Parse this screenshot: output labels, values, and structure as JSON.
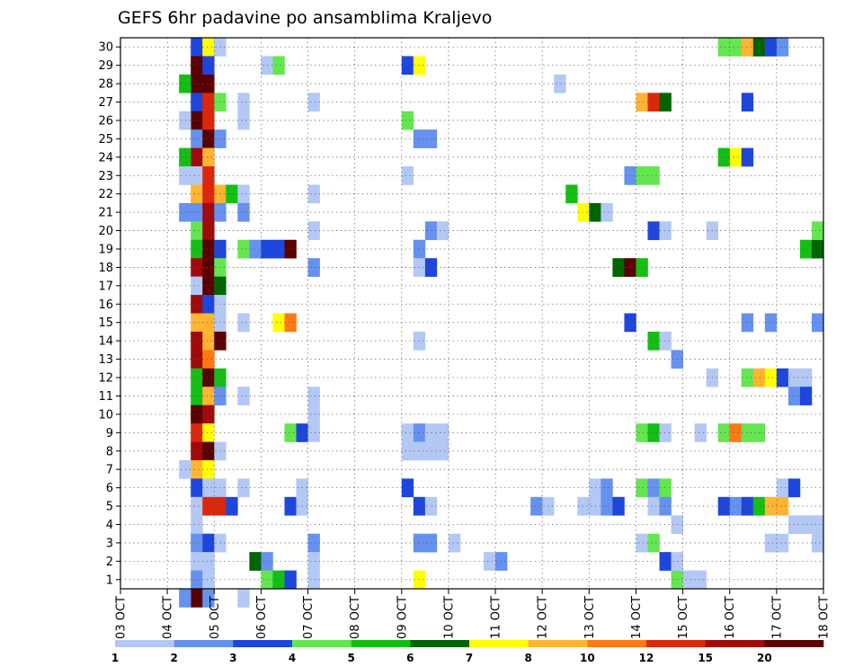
{
  "chart_data": {
    "type": "heatmap",
    "title": "GEFS 6hr padavine po ansamblima Kraljevo",
    "xlabel": "",
    "ylabel": "",
    "x_tick_labels": [
      "03 OCT",
      "04 OCT",
      "05 OCT",
      "06 OCT",
      "07 OCT",
      "08 OCT",
      "09 OCT",
      "10 OCT",
      "11 OCT",
      "12 OCT",
      "13 OCT",
      "14 OCT",
      "15 OCT",
      "16 OCT",
      "17 OCT",
      "18 OCT"
    ],
    "y_tick_labels": [
      "1",
      "2",
      "3",
      "4",
      "5",
      "6",
      "7",
      "8",
      "9",
      "10",
      "11",
      "12",
      "13",
      "14",
      "15",
      "16",
      "17",
      "18",
      "19",
      "20",
      "21",
      "22",
      "23",
      "24",
      "25",
      "26",
      "27",
      "28",
      "29",
      "30"
    ],
    "xlim": [
      0,
      60
    ],
    "ylim": [
      0.5,
      30.5
    ],
    "grid": true,
    "colorbar": {
      "labels": [
        "1",
        "2",
        "3",
        "4",
        "5",
        "6",
        "7",
        "8",
        "10",
        "12",
        "15",
        "20"
      ],
      "colors": [
        "#b4c8f5",
        "#6691ef",
        "#1e46dc",
        "#64e650",
        "#14be14",
        "#006400",
        "#ffff00",
        "#ffb432",
        "#ff7814",
        "#dc280a",
        "#a00a0a",
        "#5a0000"
      ]
    },
    "cells": [
      [
        6,
        30,
        2
      ],
      [
        6,
        29,
        11
      ],
      [
        6,
        28,
        11
      ],
      [
        6,
        27,
        2
      ],
      [
        6,
        26,
        11
      ],
      [
        6,
        25,
        1
      ],
      [
        6,
        24,
        10
      ],
      [
        6,
        23,
        0
      ],
      [
        6,
        22,
        7
      ],
      [
        6,
        21,
        1
      ],
      [
        6,
        20,
        3
      ],
      [
        6,
        19,
        4
      ],
      [
        6,
        18,
        10
      ],
      [
        6,
        17,
        0
      ],
      [
        6,
        16,
        10
      ],
      [
        6,
        15,
        7
      ],
      [
        6,
        14,
        10
      ],
      [
        6,
        13,
        10
      ],
      [
        6,
        12,
        4
      ],
      [
        6,
        11,
        4
      ],
      [
        6,
        10,
        11
      ],
      [
        6,
        9,
        9
      ],
      [
        6,
        8,
        10
      ],
      [
        6,
        7,
        7
      ],
      [
        6,
        6,
        2
      ],
      [
        6,
        5,
        0
      ],
      [
        6,
        4,
        0
      ],
      [
        6,
        3,
        1
      ],
      [
        6,
        2,
        0
      ],
      [
        6,
        1,
        1
      ],
      [
        6,
        0,
        11
      ],
      [
        5,
        28,
        4
      ],
      [
        5,
        26,
        0
      ],
      [
        5,
        24,
        4
      ],
      [
        5,
        23,
        0
      ],
      [
        5,
        21,
        1
      ],
      [
        5,
        7,
        0
      ],
      [
        5,
        0,
        1
      ],
      [
        7,
        30,
        6
      ],
      [
        7,
        29,
        2
      ],
      [
        7,
        28,
        11
      ],
      [
        7,
        27,
        9
      ],
      [
        7,
        26,
        9
      ],
      [
        7,
        25,
        11
      ],
      [
        7,
        24,
        7
      ],
      [
        7,
        23,
        9
      ],
      [
        7,
        22,
        9
      ],
      [
        7,
        21,
        10
      ],
      [
        7,
        20,
        10
      ],
      [
        7,
        19,
        11
      ],
      [
        7,
        18,
        11
      ],
      [
        7,
        17,
        11
      ],
      [
        7,
        16,
        2
      ],
      [
        7,
        15,
        7
      ],
      [
        7,
        14,
        7
      ],
      [
        7,
        13,
        8
      ],
      [
        7,
        12,
        11
      ],
      [
        7,
        11,
        7
      ],
      [
        7,
        10,
        10
      ],
      [
        7,
        9,
        6
      ],
      [
        7,
        8,
        11
      ],
      [
        7,
        7,
        6
      ],
      [
        7,
        6,
        0
      ],
      [
        7,
        5,
        9
      ],
      [
        7,
        3,
        2
      ],
      [
        7,
        2,
        0
      ],
      [
        7,
        1,
        0
      ],
      [
        7,
        0,
        1
      ],
      [
        8,
        30,
        0
      ],
      [
        8,
        27,
        3
      ],
      [
        8,
        25,
        1
      ],
      [
        8,
        22,
        7
      ],
      [
        8,
        21,
        1
      ],
      [
        8,
        19,
        2
      ],
      [
        8,
        18,
        3
      ],
      [
        8,
        17,
        5
      ],
      [
        8,
        16,
        0
      ],
      [
        8,
        15,
        0
      ],
      [
        8,
        14,
        11
      ],
      [
        8,
        12,
        4
      ],
      [
        8,
        11,
        1
      ],
      [
        8,
        8,
        0
      ],
      [
        8,
        6,
        0
      ],
      [
        8,
        5,
        9
      ],
      [
        8,
        3,
        0
      ],
      [
        9,
        22,
        4
      ],
      [
        9,
        5,
        2
      ],
      [
        10,
        27,
        0
      ],
      [
        10,
        26,
        0
      ],
      [
        10,
        22,
        0
      ],
      [
        10,
        21,
        1
      ],
      [
        10,
        19,
        3
      ],
      [
        10,
        15,
        0
      ],
      [
        10,
        11,
        0
      ],
      [
        10,
        6,
        0
      ],
      [
        10,
        0,
        0
      ],
      [
        11,
        19,
        1
      ],
      [
        11,
        2,
        5
      ],
      [
        12,
        29,
        0
      ],
      [
        12,
        19,
        2
      ],
      [
        12,
        2,
        1
      ],
      [
        12,
        1,
        3
      ],
      [
        13,
        29,
        3
      ],
      [
        13,
        19,
        2
      ],
      [
        13,
        15,
        6
      ],
      [
        13,
        1,
        4
      ],
      [
        14,
        19,
        11
      ],
      [
        14,
        15,
        8
      ],
      [
        14,
        9,
        3
      ],
      [
        14,
        5,
        2
      ],
      [
        14,
        1,
        2
      ],
      [
        15,
        9,
        2
      ],
      [
        15,
        6,
        0
      ],
      [
        15,
        5,
        0
      ],
      [
        16,
        27,
        0
      ],
      [
        16,
        22,
        0
      ],
      [
        16,
        20,
        0
      ],
      [
        16,
        18,
        1
      ],
      [
        16,
        11,
        0
      ],
      [
        16,
        10,
        0
      ],
      [
        16,
        9,
        0
      ],
      [
        16,
        3,
        1
      ],
      [
        16,
        2,
        0
      ],
      [
        16,
        1,
        0
      ],
      [
        24,
        29,
        2
      ],
      [
        24,
        26,
        3
      ],
      [
        24,
        23,
        0
      ],
      [
        24,
        6,
        2
      ],
      [
        24,
        9,
        0
      ],
      [
        24,
        8,
        0
      ],
      [
        25,
        29,
        6
      ],
      [
        25,
        25,
        1
      ],
      [
        25,
        19,
        1
      ],
      [
        25,
        18,
        0
      ],
      [
        25,
        14,
        0
      ],
      [
        25,
        9,
        1
      ],
      [
        25,
        8,
        0
      ],
      [
        25,
        5,
        2
      ],
      [
        25,
        3,
        1
      ],
      [
        25,
        1,
        6
      ],
      [
        26,
        25,
        1
      ],
      [
        26,
        20,
        1
      ],
      [
        26,
        18,
        2
      ],
      [
        26,
        9,
        0
      ],
      [
        26,
        8,
        0
      ],
      [
        26,
        5,
        0
      ],
      [
        26,
        3,
        1
      ],
      [
        27,
        20,
        0
      ],
      [
        27,
        9,
        0
      ],
      [
        27,
        8,
        0
      ],
      [
        28,
        3,
        0
      ],
      [
        31,
        2,
        0
      ],
      [
        32,
        2,
        1
      ],
      [
        35,
        5,
        1
      ],
      [
        36,
        5,
        0
      ],
      [
        37,
        28,
        0
      ],
      [
        38,
        22,
        4
      ],
      [
        39,
        21,
        6
      ],
      [
        40,
        21,
        5
      ],
      [
        41,
        21,
        0
      ],
      [
        39,
        5,
        0
      ],
      [
        40,
        5,
        0
      ],
      [
        40,
        6,
        0
      ],
      [
        41,
        6,
        1
      ],
      [
        41,
        5,
        1
      ],
      [
        42,
        5,
        2
      ],
      [
        42,
        18,
        5
      ],
      [
        43,
        18,
        11
      ],
      [
        44,
        18,
        4
      ],
      [
        43,
        15,
        2
      ],
      [
        43,
        23,
        1
      ],
      [
        44,
        27,
        7
      ],
      [
        45,
        27,
        9
      ],
      [
        46,
        27,
        5
      ],
      [
        44,
        23,
        3
      ],
      [
        45,
        23,
        3
      ],
      [
        44,
        9,
        3
      ],
      [
        45,
        9,
        4
      ],
      [
        46,
        9,
        0
      ],
      [
        44,
        6,
        3
      ],
      [
        45,
        6,
        1
      ],
      [
        46,
        6,
        3
      ],
      [
        44,
        3,
        0
      ],
      [
        45,
        3,
        3
      ],
      [
        45,
        14,
        4
      ],
      [
        46,
        14,
        0
      ],
      [
        45,
        20,
        2
      ],
      [
        46,
        20,
        0
      ],
      [
        45,
        5,
        0
      ],
      [
        46,
        5,
        1
      ],
      [
        47,
        13,
        1
      ],
      [
        47,
        4,
        0
      ],
      [
        47,
        1,
        3
      ],
      [
        46,
        2,
        2
      ],
      [
        47,
        2,
        0
      ],
      [
        48,
        1,
        0
      ],
      [
        49,
        1,
        0
      ],
      [
        49,
        9,
        0
      ],
      [
        50,
        20,
        0
      ],
      [
        50,
        12,
        0
      ],
      [
        51,
        30,
        3
      ],
      [
        52,
        30,
        3
      ],
      [
        53,
        30,
        7
      ],
      [
        54,
        30,
        5
      ],
      [
        55,
        30,
        2
      ],
      [
        56,
        30,
        1
      ],
      [
        51,
        24,
        4
      ],
      [
        52,
        24,
        6
      ],
      [
        53,
        24,
        2
      ],
      [
        53,
        27,
        2
      ],
      [
        51,
        9,
        3
      ],
      [
        52,
        9,
        8
      ],
      [
        53,
        9,
        3
      ],
      [
        54,
        9,
        3
      ],
      [
        51,
        5,
        2
      ],
      [
        52,
        5,
        1
      ],
      [
        53,
        5,
        2
      ],
      [
        54,
        5,
        4
      ],
      [
        55,
        5,
        7
      ],
      [
        56,
        5,
        7
      ],
      [
        53,
        15,
        1
      ],
      [
        55,
        15,
        1
      ],
      [
        53,
        12,
        3
      ],
      [
        54,
        12,
        7
      ],
      [
        55,
        12,
        6
      ],
      [
        56,
        12,
        2
      ],
      [
        56,
        6,
        0
      ],
      [
        57,
        6,
        2
      ],
      [
        55,
        3,
        0
      ],
      [
        56,
        3,
        0
      ],
      [
        57,
        12,
        0
      ],
      [
        58,
        12,
        0
      ],
      [
        57,
        11,
        1
      ],
      [
        58,
        11,
        2
      ],
      [
        57,
        4,
        0
      ],
      [
        58,
        4,
        0
      ],
      [
        59,
        4,
        0
      ],
      [
        59,
        3,
        0
      ],
      [
        58,
        19,
        4
      ],
      [
        59,
        19,
        5
      ],
      [
        59,
        20,
        3
      ],
      [
        59,
        15,
        1
      ]
    ]
  }
}
